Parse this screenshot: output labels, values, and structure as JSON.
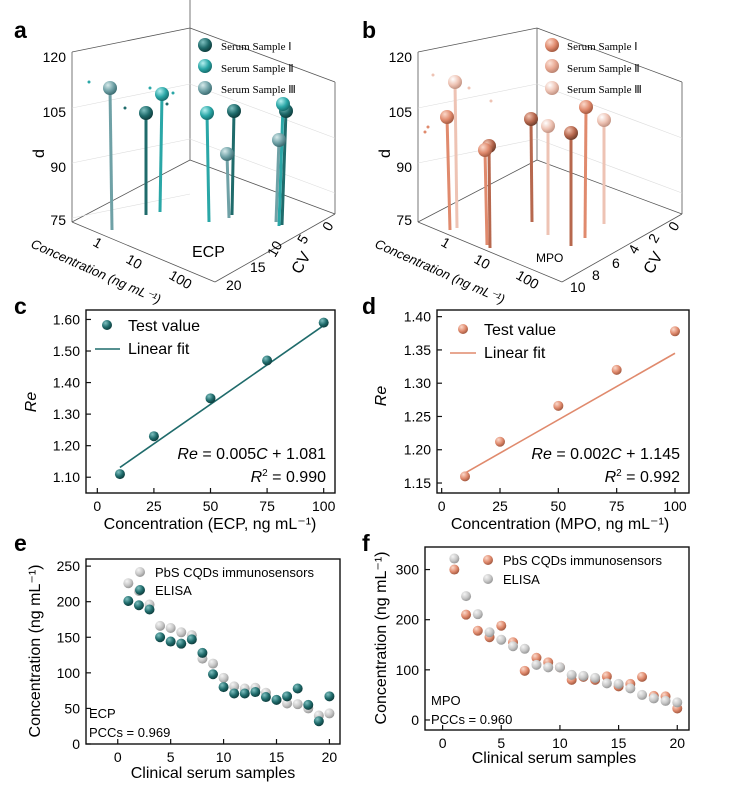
{
  "colors": {
    "ecp_dark": "#1f6b6b",
    "ecp_mid": "#2aa7a7",
    "ecp_light": "#6fa1a6",
    "mpo_dark": "#b7684e",
    "mpo_mid": "#e08a6d",
    "mpo_light": "#eec3b4",
    "elisa_grey": "#c8c8c8"
  },
  "panels": {
    "a": "a",
    "b": "b",
    "c": "c",
    "d": "d",
    "e": "e",
    "f": "f"
  },
  "chart_data": [
    {
      "id": "a",
      "type": "scatter",
      "subtype": "3d-stem",
      "zlabel": "d",
      "xlabel": "Concentration (ng mL⁻¹)",
      "ylabel": "CV",
      "label": "ECP",
      "z_ticks": [
        "75",
        "90",
        "105",
        "120"
      ],
      "x_ticks": [
        "1",
        "10",
        "100"
      ],
      "y_ticks": [
        "0",
        "5",
        "10",
        "15",
        "20"
      ],
      "legend": [
        "Serum Sample Ⅰ",
        "Serum Sample Ⅱ",
        "Serum Sample Ⅲ"
      ],
      "series": [
        {
          "name": "Serum Sample Ⅰ",
          "values": [
            104,
            104,
            96,
            104
          ]
        },
        {
          "name": "Serum Sample Ⅱ",
          "values": [
            113,
            104,
            106
          ]
        },
        {
          "name": "Serum Sample Ⅲ",
          "values": [
            114,
            103
          ]
        }
      ]
    },
    {
      "id": "b",
      "type": "scatter",
      "subtype": "3d-stem",
      "zlabel": "d",
      "xlabel": "Concentration (ng mL⁻¹)",
      "ylabel": "CV",
      "label": "MPO",
      "z_ticks": [
        "75",
        "90",
        "105",
        "120"
      ],
      "x_ticks": [
        "1",
        "10",
        "100"
      ],
      "y_ticks": [
        "0",
        "2",
        "4",
        "6",
        "8",
        "10"
      ],
      "legend": [
        "Serum Sample Ⅰ",
        "Serum Sample Ⅱ",
        "Serum Sample Ⅲ"
      ],
      "series": [
        {
          "name": "Serum Sample Ⅰ",
          "values": [
            97,
            98,
            104,
            103
          ]
        },
        {
          "name": "Serum Sample Ⅱ",
          "values": [
            104,
            105,
            105
          ]
        },
        {
          "name": "Serum Sample Ⅲ",
          "values": [
            114,
            102
          ]
        }
      ]
    },
    {
      "id": "c",
      "type": "scatter",
      "xlabel": "Concentration (ECP, ng mL⁻¹)",
      "ylabel": "Re",
      "xlim": [
        0,
        100
      ],
      "ylim": [
        1.05,
        1.63
      ],
      "x_ticks": [
        0,
        25,
        50,
        75,
        100
      ],
      "y_ticks": [
        "1.10",
        "1.20",
        "1.30",
        "1.40",
        "1.50",
        "1.60"
      ],
      "legend": [
        "Test value",
        "Linear fit"
      ],
      "x": [
        10,
        25,
        50,
        75,
        100
      ],
      "y": [
        1.11,
        1.23,
        1.35,
        1.47,
        1.59
      ],
      "fit": {
        "slope": 0.005,
        "intercept": 1.081
      },
      "eq_prefix": "Re",
      "eq_mid": " = 0.005",
      "eq_var": "C",
      "eq_suffix": " + 1.081",
      "r2_label": "R",
      "r2_sup": "2",
      "r2_value": " = 0.990"
    },
    {
      "id": "d",
      "type": "scatter",
      "xlabel": "Concentration (MPO, ng mL⁻¹)",
      "ylabel": "Re",
      "xlim": [
        0,
        100
      ],
      "ylim": [
        1.135,
        1.41
      ],
      "x_ticks": [
        0,
        25,
        50,
        75,
        100
      ],
      "y_ticks": [
        "1.15",
        "1.20",
        "1.25",
        "1.30",
        "1.35",
        "1.40"
      ],
      "legend": [
        "Test value",
        "Linear fit"
      ],
      "x": [
        10,
        25,
        50,
        75,
        100
      ],
      "y": [
        1.16,
        1.212,
        1.266,
        1.32,
        1.378
      ],
      "fit": {
        "slope": 0.002,
        "intercept": 1.145
      },
      "eq_prefix": "Re",
      "eq_mid": " = 0.002",
      "eq_var": "C",
      "eq_suffix": " + 1.145",
      "r2_label": "R",
      "r2_sup": "2",
      "r2_value": " = 0.992"
    },
    {
      "id": "e",
      "type": "scatter",
      "xlabel": "Clinical serum samples",
      "ylabel": "Concentration (ng mL⁻¹)",
      "xlim": [
        0,
        20.5
      ],
      "ylim": [
        0,
        260
      ],
      "x_ticks": [
        0,
        5,
        10,
        15,
        20
      ],
      "y_ticks": [
        0,
        50,
        100,
        150,
        200,
        250
      ],
      "label": "ECP",
      "pcc": "PCCs = 0.969",
      "x": [
        1,
        2,
        3,
        4,
        5,
        6,
        7,
        8,
        9,
        10,
        11,
        12,
        13,
        14,
        15,
        16,
        17,
        18,
        19,
        20
      ],
      "series": [
        {
          "name": "PbS CQDs immunosensors",
          "values": [
            226,
            215,
            196,
            166,
            163,
            157,
            153,
            120,
            113,
            93,
            81,
            78,
            79,
            72,
            62,
            57,
            56,
            50,
            40,
            43
          ]
        },
        {
          "name": "ELISA",
          "values": [
            201,
            195,
            189,
            150,
            144,
            141,
            147,
            128,
            98,
            80,
            71,
            71,
            73,
            66,
            62,
            67,
            78,
            55,
            32,
            67
          ]
        }
      ]
    },
    {
      "id": "f",
      "type": "scatter",
      "xlabel": "Clinical serum samples",
      "ylabel": "Concentration (ng mL⁻¹)",
      "xlim": [
        -1.5,
        21
      ],
      "ylim": [
        -20,
        345
      ],
      "x_ticks": [
        0,
        5,
        10,
        15,
        20
      ],
      "y_ticks": [
        0,
        100,
        200,
        300
      ],
      "label": "MPO",
      "pcc": "PCCs = 0.960",
      "x": [
        1,
        2,
        3,
        4,
        5,
        6,
        7,
        8,
        9,
        10,
        11,
        12,
        13,
        14,
        15,
        16,
        17,
        18,
        19,
        20
      ],
      "series": [
        {
          "name": "PbS CQDs immunosensors",
          "values": [
            300,
            210,
            178,
            165,
            188,
            155,
            98,
            124,
            115,
            105,
            80,
            86,
            80,
            87,
            67,
            72,
            86,
            48,
            47,
            23
          ]
        },
        {
          "name": "ELISA",
          "values": [
            322,
            247,
            211,
            175,
            160,
            147,
            142,
            110,
            105,
            105,
            90,
            88,
            84,
            73,
            72,
            63,
            50,
            43,
            38,
            35
          ]
        }
      ]
    }
  ]
}
